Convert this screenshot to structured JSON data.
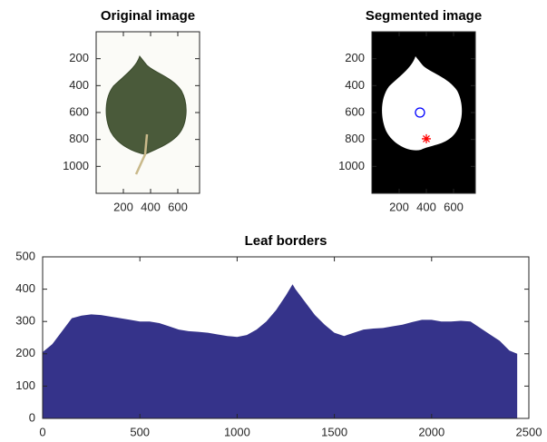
{
  "chart_data": [
    {
      "type": "image",
      "title": "Original image",
      "xlim": [
        0,
        760
      ],
      "ylim": [
        0,
        1200
      ],
      "y_reversed": true,
      "xticks": [
        200,
        400,
        600
      ],
      "yticks": [
        200,
        400,
        600,
        800,
        1000
      ]
    },
    {
      "type": "image",
      "title": "Segmented image",
      "xlim": [
        0,
        760
      ],
      "ylim": [
        0,
        1200
      ],
      "y_reversed": true,
      "xticks": [
        200,
        400,
        600
      ],
      "yticks": [
        200,
        400,
        600,
        800,
        1000
      ],
      "series": [
        {
          "marker": "circle",
          "color": "#0000ff",
          "x": [
            353
          ],
          "y": [
            600
          ]
        },
        {
          "marker": "star",
          "color": "#ff0000",
          "x": [
            400
          ],
          "y": [
            795
          ]
        }
      ]
    },
    {
      "type": "area",
      "title": "Leaf borders",
      "color": "#35338a",
      "xlim": [
        0,
        2500
      ],
      "ylim": [
        0,
        500
      ],
      "xticks": [
        0,
        500,
        1000,
        1500,
        2000,
        2500
      ],
      "yticks": [
        0,
        100,
        200,
        300,
        400,
        500
      ],
      "x": [
        0,
        50,
        100,
        150,
        200,
        250,
        300,
        350,
        400,
        450,
        500,
        550,
        600,
        650,
        700,
        750,
        800,
        850,
        900,
        950,
        1000,
        1050,
        1100,
        1150,
        1200,
        1250,
        1285,
        1300,
        1350,
        1400,
        1450,
        1500,
        1550,
        1600,
        1650,
        1700,
        1750,
        1800,
        1850,
        1900,
        1950,
        2000,
        2050,
        2100,
        2150,
        2200,
        2250,
        2300,
        2350,
        2400,
        2440
      ],
      "values": [
        205,
        230,
        270,
        310,
        318,
        322,
        320,
        315,
        310,
        305,
        300,
        300,
        295,
        285,
        275,
        270,
        268,
        265,
        260,
        255,
        252,
        258,
        275,
        300,
        335,
        380,
        415,
        400,
        360,
        320,
        290,
        265,
        255,
        265,
        275,
        278,
        280,
        285,
        290,
        298,
        305,
        305,
        300,
        300,
        302,
        300,
        280,
        260,
        240,
        210,
        200
      ]
    }
  ]
}
